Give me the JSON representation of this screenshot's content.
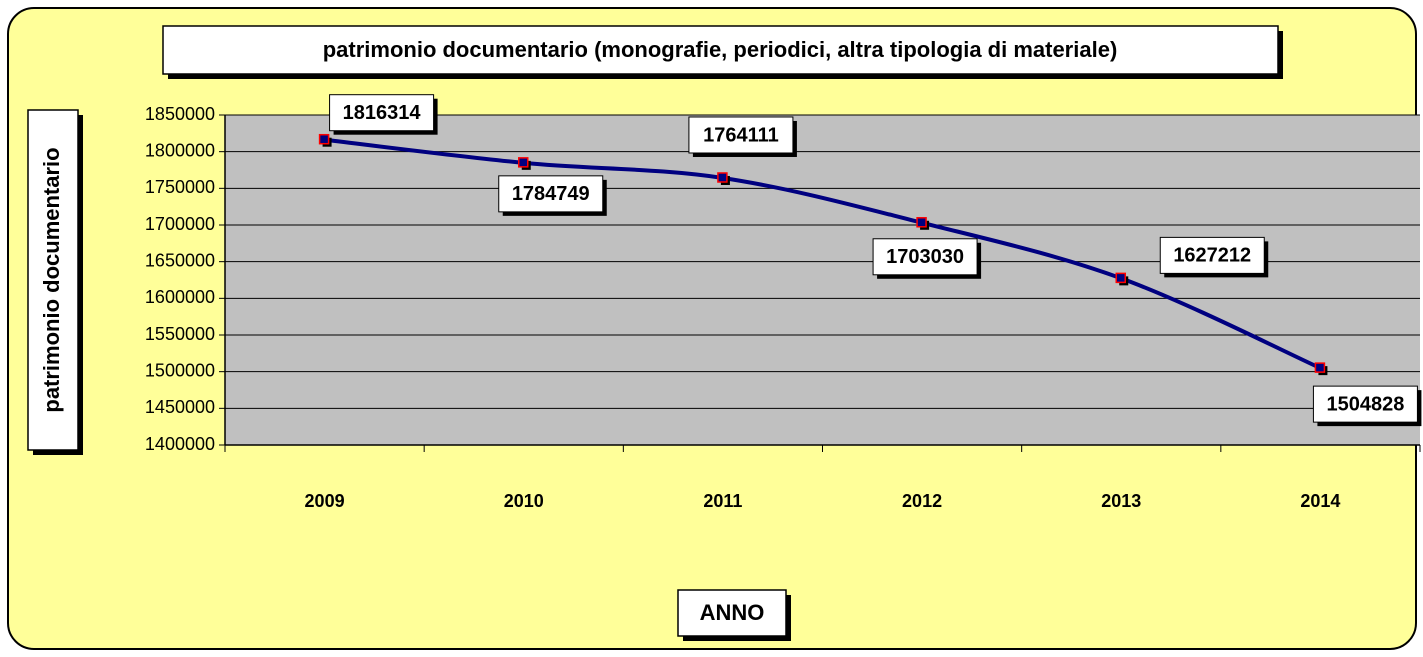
{
  "chart_data": {
    "type": "line",
    "title": "patrimonio documentario (monografie, periodici, altra tipologia di materiale)",
    "x_label": "ANNO",
    "y_label": "patrimonio documentario",
    "categories": [
      "2009",
      "2010",
      "2011",
      "2012",
      "2013",
      "2014"
    ],
    "series": [
      {
        "name": "patrimonio documentario",
        "color": "#000080",
        "values": [
          1816314,
          1784749,
          1764111,
          1703030,
          1627212,
          1504828
        ]
      }
    ],
    "ylim": [
      1400000,
      1850000
    ],
    "yticks": [
      1400000,
      1450000,
      1500000,
      1550000,
      1600000,
      1650000,
      1700000,
      1750000,
      1800000,
      1850000
    ],
    "grid": true
  }
}
